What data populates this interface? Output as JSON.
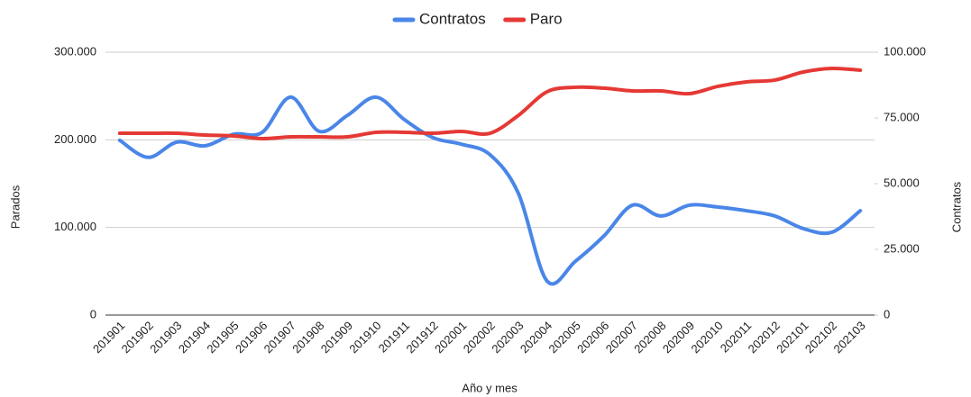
{
  "chart_data": {
    "type": "line",
    "x_label": "Año y mes",
    "y_label": "Parados",
    "y2_label": "Contratos",
    "legend": "top",
    "grid": true,
    "categories": [
      "201901",
      "201902",
      "201903",
      "201904",
      "201905",
      "201906",
      "201907",
      "201908",
      "201909",
      "201910",
      "201911",
      "201912",
      "202001",
      "202002",
      "202003",
      "202004",
      "202005",
      "202006",
      "202007",
      "202008",
      "202009",
      "202010",
      "202011",
      "202012",
      "202101",
      "202102",
      "202103"
    ],
    "series": [
      {
        "name": "Contratos",
        "color": "#4a86e8",
        "axis": "y2",
        "values": [
          66500,
          60000,
          65800,
          64400,
          68800,
          69500,
          82900,
          69900,
          76000,
          82900,
          74300,
          67500,
          65000,
          61000,
          46200,
          13000,
          20500,
          30100,
          41800,
          37700,
          41800,
          41100,
          39700,
          37700,
          32900,
          31500,
          39700
        ]
      },
      {
        "name": "Paro",
        "color": "#e53935",
        "values": [
          207500,
          207500,
          207500,
          205500,
          204500,
          201400,
          203400,
          203400,
          203400,
          208600,
          208600,
          207500,
          209600,
          207500,
          228000,
          254800,
          260000,
          259000,
          255800,
          255800,
          252700,
          261000,
          266100,
          268200,
          277400,
          281500,
          279500
        ]
      }
    ],
    "ylim": [
      0,
      300000
    ],
    "yticks": [
      0,
      {
        "value": 100000,
        "label": "100.000"
      },
      {
        "value": 200000,
        "label": "200.000"
      },
      {
        "value": 300000,
        "label": "300.000"
      }
    ],
    "y2lim": [
      0,
      100000
    ],
    "y2ticks": [
      0,
      {
        "value": 25000,
        "label": "25.000"
      },
      {
        "value": 50000,
        "label": "50.000"
      },
      {
        "value": 75000,
        "label": "75.000"
      },
      {
        "value": 100000,
        "label": "100.000"
      }
    ]
  }
}
